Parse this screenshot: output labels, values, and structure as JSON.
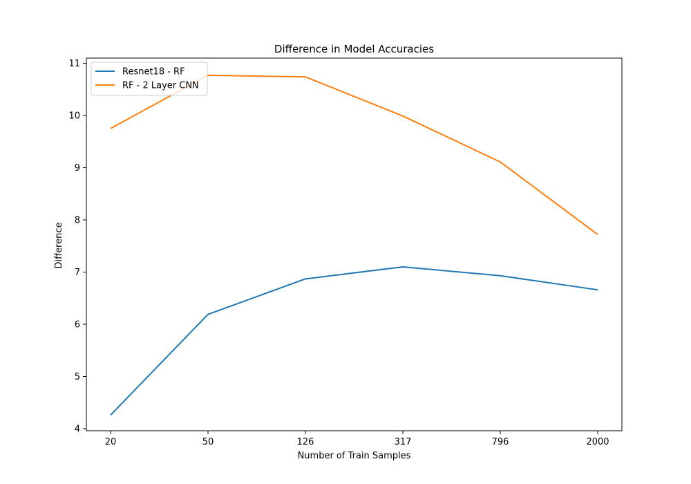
{
  "chart_data": {
    "type": "line",
    "title": "Difference in Model Accuracies",
    "xlabel": "Number of Train Samples",
    "ylabel": "Difference",
    "categories": [
      "20",
      "50",
      "126",
      "317",
      "796",
      "2000"
    ],
    "ylim": [
      3.96,
      11.1
    ],
    "yticks": [
      "4",
      "5",
      "6",
      "7",
      "8",
      "9",
      "10",
      "11"
    ],
    "grid": false,
    "legend_position": "top-left",
    "series": [
      {
        "name": "Resnet18 - RF",
        "color": "#1f77b4",
        "values": [
          4.26,
          6.19,
          6.87,
          7.1,
          6.93,
          6.66
        ]
      },
      {
        "name": "RF - 2 Layer CNN",
        "color": "#ff7f0e",
        "values": [
          9.75,
          10.77,
          10.74,
          9.99,
          9.11,
          7.72
        ]
      }
    ]
  }
}
